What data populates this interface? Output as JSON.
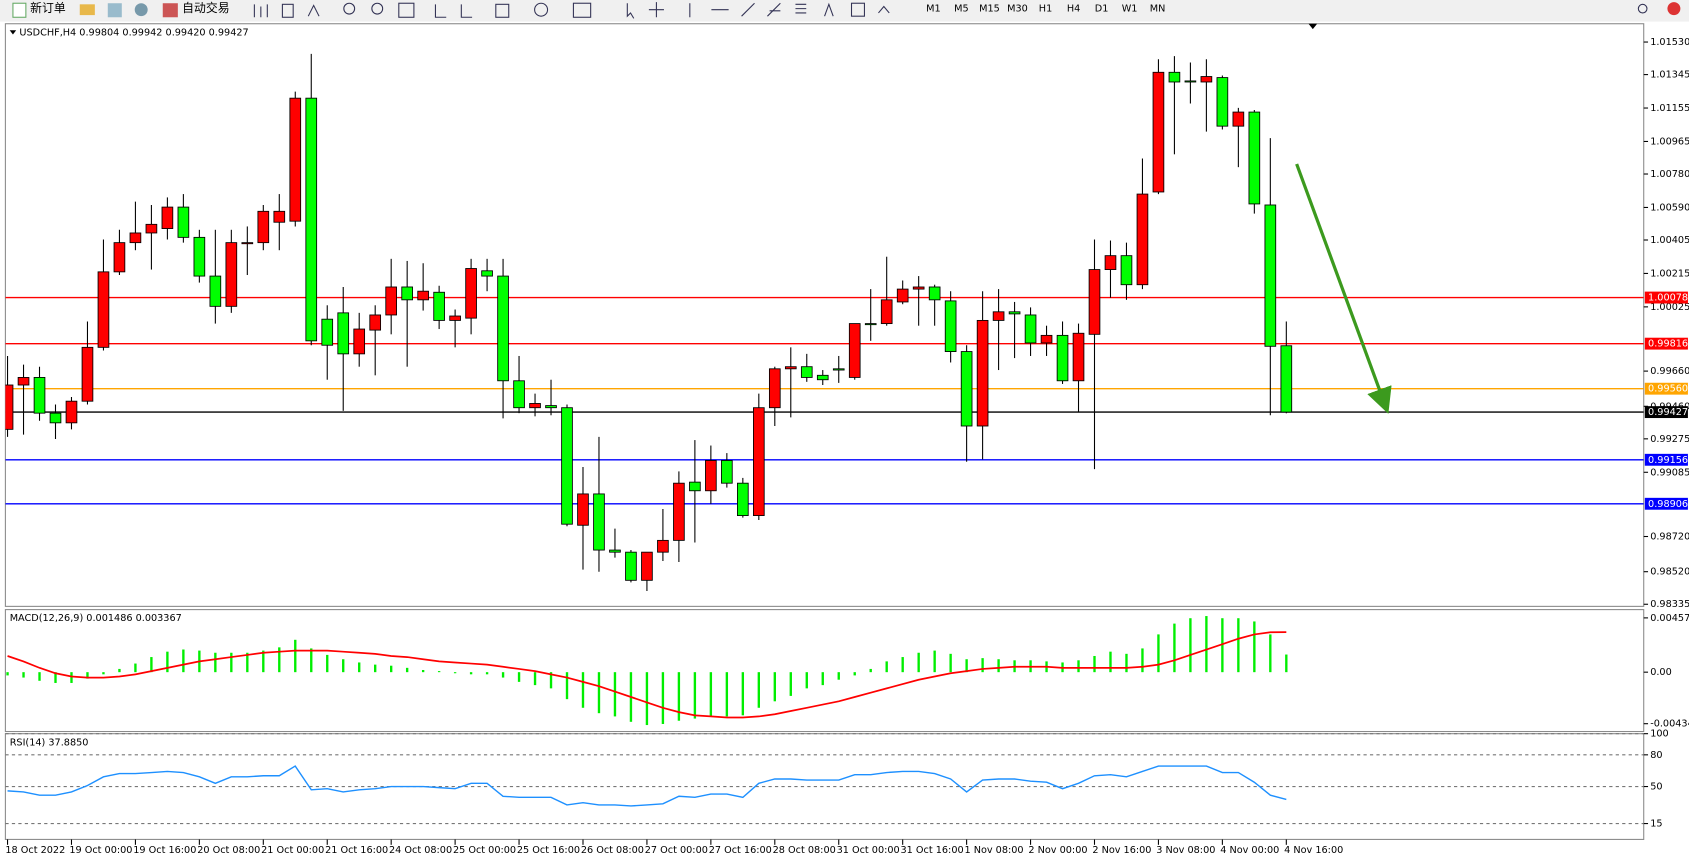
{
  "toolbar": {
    "new_order": "新订单",
    "auto_trading": "自动交易",
    "periods": [
      "M1",
      "M5",
      "M15",
      "M30",
      "H1",
      "H4",
      "D1",
      "W1",
      "MN"
    ]
  },
  "chart_data": [
    {
      "type": "candlestick",
      "title": "USDCHF,H4 0.99804 0.99942 0.99420 0.99427",
      "categories": [
        "18 Oct 2022",
        null,
        null,
        null,
        "19 Oct 00:00",
        null,
        null,
        null,
        "19 Oct 16:00",
        null,
        null,
        null,
        "20 Oct 08:00",
        null,
        null,
        null,
        "21 Oct 00:00",
        null,
        null,
        null,
        "21 Oct 16:00",
        null,
        null,
        null,
        "24 Oct 08:00",
        null,
        null,
        null,
        "25 Oct 00:00",
        null,
        null,
        null,
        "25 Oct 16:00",
        null,
        null,
        null,
        "26 Oct 08:00",
        null,
        null,
        null,
        "27 Oct 00:00",
        null,
        null,
        null,
        "27 Oct 16:00",
        null,
        null,
        null,
        "28 Oct 08:00",
        null,
        null,
        null,
        "31 Oct 00:00",
        null,
        null,
        null,
        "31 Oct 16:00",
        null,
        null,
        null,
        "1 Nov 08:00",
        null,
        null,
        null,
        "2 Nov 00:00",
        null,
        null,
        null,
        "2 Nov 16:00",
        null,
        null,
        null,
        "3 Nov 08:00",
        null,
        null,
        null,
        "4 Nov 00:00",
        null,
        null,
        null,
        "4 Nov 16:00"
      ],
      "open": [
        0.99329,
        0.99581,
        0.99624,
        0.99421,
        0.99366,
        0.99489,
        0.99795,
        1.00224,
        1.0039,
        1.00445,
        1.0047,
        1.00592,
        1.0042,
        1.002,
        1.00028,
        1.00384,
        1.0039,
        1.00506,
        1.00512,
        1.01211,
        0.99955,
        0.99991,
        0.99758,
        0.99893,
        0.99979,
        1.00138,
        1.00065,
        1.00108,
        0.99948,
        0.99961,
        1.0023,
        1.002,
        0.99605,
        0.99452,
        0.99464,
        0.99452,
        0.98784,
        0.98962,
        0.98643,
        0.98631,
        0.98471,
        0.98631,
        0.98698,
        0.99029,
        0.9898,
        0.99152,
        0.99023,
        0.98839,
        0.99452,
        0.99673,
        0.99685,
        0.99636,
        0.99673,
        0.99624,
        0.9993,
        0.9993,
        1.00053,
        1.00126,
        1.00138,
        1.00059,
        0.99771,
        0.99348,
        0.99948,
        0.99997,
        0.99979,
        0.9982,
        0.99863,
        0.99605,
        0.99869,
        1.00237,
        1.00316,
        1.00151,
        1.00678,
        1.01358,
        1.01309,
        1.01303,
        1.01328,
        1.01052,
        1.01132,
        1.00604,
        0.99804
      ],
      "high": [
        0.99746,
        0.99697,
        0.99685,
        0.9947,
        0.99513,
        0.99942,
        1.00408,
        1.00463,
        1.00623,
        1.00604,
        1.00647,
        1.00666,
        1.00463,
        1.00463,
        1.00463,
        1.00482,
        1.00604,
        1.00666,
        1.01248,
        1.01463,
        1.00034,
        1.00138,
        0.99991,
        1.00034,
        1.00298,
        1.00286,
        1.00273,
        1.00145,
        1.0001,
        1.00298,
        1.00298,
        1.00298,
        0.99746,
        0.99532,
        0.99611,
        0.9947,
        0.99115,
        0.99286,
        0.98765,
        0.98643,
        0.98631,
        0.98876,
        0.9909,
        0.99268,
        0.99237,
        0.99194,
        0.99053,
        0.99532,
        0.99685,
        0.99795,
        0.99758,
        0.99666,
        0.99746,
        0.9993,
        1.00126,
        1.0031,
        1.00175,
        1.002,
        1.00151,
        1.00114,
        0.99807,
        1.00114,
        1.00126,
        1.00053,
        1.00022,
        0.99918,
        0.99942,
        0.9993,
        1.00408,
        1.00402,
        1.0039,
        1.00868,
        1.01432,
        1.0145,
        1.01414,
        1.01432,
        1.0134,
        1.01156,
        1.01144,
        1.00984,
        0.99942
      ],
      "low": [
        0.99286,
        0.99299,
        0.99378,
        0.99274,
        0.99329,
        0.9947,
        0.99777,
        1.00206,
        1.00347,
        1.00237,
        1.00408,
        1.0039,
        1.00163,
        0.9993,
        0.99991,
        1.00206,
        1.00347,
        1.00347,
        1.00482,
        0.99807,
        0.99611,
        0.99434,
        0.99685,
        0.99636,
        0.99869,
        0.99685,
        1.00004,
        0.99899,
        0.99795,
        0.99869,
        1.00114,
        0.99391,
        0.99421,
        0.99403,
        0.99409,
        0.98778,
        0.98532,
        0.9852,
        0.986,
        0.98459,
        0.9841,
        0.98581,
        0.98575,
        0.98686,
        0.98906,
        0.98998,
        0.98827,
        0.98814,
        0.99348,
        0.99397,
        0.99599,
        0.99581,
        0.99593,
        0.99611,
        0.99832,
        0.99918,
        1.0004,
        0.99918,
        0.99918,
        0.99709,
        0.99145,
        0.99158,
        0.99666,
        0.99734,
        0.99746,
        0.99746,
        0.99587,
        0.99427,
        0.99103,
        1.00077,
        1.00065,
        1.00126,
        1.00666,
        1.00892,
        1.01181,
        1.01021,
        1.01033,
        1.00819,
        1.00555,
        0.99409,
        0.9942
      ],
      "close": [
        0.99581,
        0.99624,
        0.99421,
        0.99366,
        0.99489,
        0.99795,
        1.00224,
        1.0039,
        1.00445,
        1.00494,
        1.00592,
        1.0042,
        1.002,
        1.00028,
        1.0039,
        1.0039,
        1.00568,
        1.00568,
        1.01211,
        0.99832,
        0.99807,
        0.99758,
        0.99899,
        0.99979,
        1.00138,
        1.00065,
        1.00114,
        0.99948,
        0.99973,
        1.00243,
        1.002,
        0.99605,
        0.99452,
        0.99476,
        0.99452,
        0.9879,
        0.98962,
        0.98643,
        0.98631,
        0.98471,
        0.98631,
        0.98698,
        0.99023,
        0.9898,
        0.99152,
        0.99023,
        0.98839,
        0.99452,
        0.99673,
        0.99685,
        0.99624,
        0.99611,
        0.99666,
        0.9993,
        0.99924,
        1.00065,
        1.00126,
        1.00138,
        1.00065,
        0.99771,
        0.99348,
        0.99948,
        0.99997,
        0.99985,
        0.9982,
        0.99863,
        0.99605,
        0.99875,
        1.00237,
        1.00316,
        1.00151,
        1.00666,
        1.01358,
        1.01303,
        1.01303,
        1.01334,
        1.01052,
        1.01132,
        1.0061,
        0.99801,
        0.99427
      ],
      "up_color": "#ff0000",
      "down_color": "#00ff00",
      "ylim": [
        0.98323,
        1.01634
      ],
      "yticks": [
        {
          "value": 1.0153,
          "label": "1.01530"
        },
        1.01345,
        1.01155,
        1.00965,
        {
          "value": 1.0078,
          "label": "1.00780"
        },
        {
          "value": 1.0059,
          "label": "1.00590"
        },
        1.00405,
        1.00215,
        1.00025,
        {
          "value": 0.9966,
          "label": "0.99660"
        },
        {
          "value": 0.9946,
          "label": "0.99460"
        },
        0.99275,
        0.99085,
        {
          "value": 0.9872,
          "label": "0.98720"
        },
        {
          "value": 0.9852,
          "label": "0.98520"
        },
        0.98335
      ],
      "levels": {
        "values": [
          1.00078,
          0.99816,
          0.9956,
          0.99427,
          0.99156,
          0.98906
        ],
        "value_labels": [
          "1.00078",
          "0.99816",
          "0.99560",
          "0.99427",
          "0.99156",
          "0.98906"
        ],
        "colors": [
          "#ff0000",
          "#ff0000",
          "#ffa500",
          "#000000",
          "#0000ff",
          "#0000ff"
        ]
      }
    },
    {
      "type": "macd",
      "title": "MACD(12,26,9) 0.001486 0.003367",
      "series": [
        {
          "color": "#00ee00",
          "values": [
            -0.000273,
            -0.000455,
            -0.000727,
            -0.000909,
            -0.000909,
            -0.000545,
            -0.000182,
            0.000273,
            0.000727,
            0.001273,
            0.001727,
            0.001909,
            0.001818,
            0.001636,
            0.001636,
            0.001636,
            0.001818,
            0.002091,
            0.002727,
            0.002,
            0.001455,
            0.001091,
            0.000818,
            0.000636,
            0.000545,
            0.000364,
            0.000182,
            9.1e-05,
            -9.1e-05,
            -0.000182,
            -0.000182,
            -0.000455,
            -0.000818,
            -0.001091,
            -0.001364,
            -0.002273,
            -0.003,
            -0.003455,
            -0.003727,
            -0.004182,
            -0.004455,
            -0.004364,
            -0.004091,
            -0.003909,
            -0.003727,
            -0.003727,
            -0.003636,
            -0.003,
            -0.002455,
            -0.002,
            -0.001364,
            -0.001091,
            -0.000636,
            -0.000273,
            0.000273,
            0.000909,
            0.001273,
            0.001636,
            0.001818,
            0.001545,
            0.001091,
            0.001182,
            0.001091,
            0.001,
            0.001,
            0.000909,
            0.000818,
            0.001,
            0.001364,
            0.001727,
            0.001545,
            0.002,
            0.003182,
            0.004091,
            0.004545,
            0.004727,
            0.004545,
            0.004545,
            0.004273,
            0.003182,
            0.001486
          ]
        },
        {
          "color": "#ff0000",
          "values": [
            0.001364,
            0.000909,
            0.000364,
            -9.1e-05,
            -0.000364,
            -0.000455,
            -0.000455,
            -0.000364,
            -0.000182,
            9.1e-05,
            0.000364,
            0.000636,
            0.000909,
            0.001091,
            0.001273,
            0.001455,
            0.001636,
            0.001727,
            0.001818,
            0.001818,
            0.001818,
            0.001727,
            0.001636,
            0.001545,
            0.001364,
            0.001273,
            0.001091,
            0.000909,
            0.000818,
            0.000727,
            0.000636,
            0.000455,
            0.000273,
            9.1e-05,
            -0.000182,
            -0.000455,
            -0.000818,
            -0.001182,
            -0.001636,
            -0.002091,
            -0.002545,
            -0.003,
            -0.003364,
            -0.003636,
            -0.003727,
            -0.003818,
            -0.003818,
            -0.003727,
            -0.003545,
            -0.003273,
            -0.003,
            -0.002727,
            -0.002455,
            -0.002091,
            -0.001727,
            -0.001364,
            -0.001,
            -0.000636,
            -0.000364,
            -9.1e-05,
            9.1e-05,
            0.000273,
            0.000364,
            0.000455,
            0.000455,
            0.000455,
            0.000364,
            0.000364,
            0.000364,
            0.000364,
            0.000364,
            0.000455,
            0.000636,
            0.001,
            0.001455,
            0.001909,
            0.002364,
            0.002818,
            0.003182,
            0.003364,
            0.003367
          ]
        }
      ],
      "ylim": [
        -0.005,
        0.00527
      ],
      "yticks": [
        0.004572,
        {
          "value": 0,
          "label": "0.00"
        },
        -0.004341
      ]
    },
    {
      "type": "line",
      "title": "RSI(14) 37.8850",
      "series": [
        {
          "color": "#1e90ff",
          "values": [
            45.9,
            44.9,
            41.8,
            41.8,
            44.9,
            51.0,
            59.2,
            62.2,
            62.2,
            63.3,
            64.3,
            63.3,
            59.2,
            53.1,
            59.2,
            59.2,
            60.2,
            60.2,
            69.4,
            46.9,
            48.0,
            44.9,
            46.9,
            48.0,
            50.0,
            50.0,
            50.0,
            49.0,
            48.0,
            53.1,
            53.1,
            40.8,
            39.8,
            39.8,
            39.8,
            32.7,
            34.7,
            32.7,
            32.7,
            31.6,
            32.7,
            33.7,
            40.8,
            39.8,
            42.9,
            42.9,
            39.8,
            53.1,
            57.1,
            57.1,
            56.1,
            56.1,
            56.1,
            61.2,
            61.2,
            63.3,
            64.3,
            64.3,
            62.2,
            57.1,
            44.9,
            56.1,
            57.1,
            57.1,
            55.1,
            54.1,
            48.0,
            53.1,
            60.2,
            61.2,
            59.2,
            64.3,
            69.4,
            69.4,
            69.4,
            69.4,
            63.3,
            63.3,
            54.1,
            41.8,
            37.885
          ]
        }
      ],
      "ylim": [
        0,
        100
      ],
      "yticks": [
        100,
        80,
        50,
        15
      ],
      "grid": "dashed"
    }
  ]
}
